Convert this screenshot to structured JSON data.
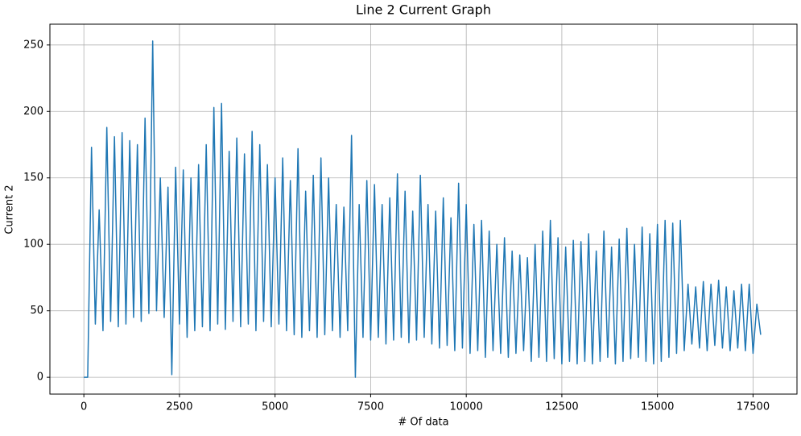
{
  "chart_data": {
    "type": "line",
    "title": "Line 2 Current Graph",
    "x_label": "# Of data",
    "y_label": "Current 2",
    "x": [
      0,
      100,
      200,
      300,
      400,
      500,
      600,
      700,
      800,
      900,
      1000,
      1100,
      1200,
      1300,
      1400,
      1500,
      1600,
      1700,
      1800,
      1900,
      2000,
      2100,
      2200,
      2300,
      2400,
      2500,
      2600,
      2700,
      2800,
      2900,
      3000,
      3100,
      3200,
      3300,
      3400,
      3500,
      3600,
      3700,
      3800,
      3900,
      4000,
      4100,
      4200,
      4300,
      4400,
      4500,
      4600,
      4700,
      4800,
      4900,
      5000,
      5100,
      5200,
      5300,
      5400,
      5500,
      5600,
      5700,
      5800,
      5900,
      6000,
      6100,
      6200,
      6300,
      6400,
      6500,
      6600,
      6700,
      6800,
      6900,
      7000,
      7100,
      7200,
      7300,
      7400,
      7500,
      7600,
      7700,
      7800,
      7900,
      8000,
      8100,
      8200,
      8300,
      8400,
      8500,
      8600,
      8700,
      8800,
      8900,
      9000,
      9100,
      9200,
      9300,
      9400,
      9500,
      9600,
      9700,
      9800,
      9900,
      10000,
      10100,
      10200,
      10300,
      10400,
      10500,
      10600,
      10700,
      10800,
      10900,
      11000,
      11100,
      11200,
      11300,
      11400,
      11500,
      11600,
      11700,
      11800,
      11900,
      12000,
      12100,
      12200,
      12300,
      12400,
      12500,
      12600,
      12700,
      12800,
      12900,
      13000,
      13100,
      13200,
      13300,
      13400,
      13500,
      13600,
      13700,
      13800,
      13900,
      14000,
      14100,
      14200,
      14300,
      14400,
      14500,
      14600,
      14700,
      14800,
      14900,
      15000,
      15100,
      15200,
      15300,
      15400,
      15500,
      15600,
      15700,
      15800,
      15900,
      16000,
      16100,
      16200,
      16300,
      16400,
      16500,
      16600,
      16700,
      16800,
      16900,
      17000,
      17100,
      17200,
      17300,
      17400,
      17500,
      17600,
      17700
    ],
    "series": [
      {
        "name": "Current 2",
        "color": "#1f77b4",
        "values": [
          0,
          0,
          173,
          40,
          126,
          35,
          188,
          42,
          181,
          38,
          184,
          40,
          178,
          45,
          175,
          42,
          195,
          48,
          253,
          50,
          150,
          45,
          143,
          2,
          158,
          40,
          156,
          30,
          150,
          35,
          160,
          38,
          175,
          35,
          203,
          40,
          206,
          36,
          170,
          42,
          180,
          38,
          168,
          40,
          185,
          35,
          175,
          42,
          160,
          38,
          150,
          40,
          165,
          35,
          148,
          32,
          172,
          30,
          140,
          35,
          152,
          30,
          165,
          32,
          150,
          35,
          130,
          30,
          128,
          35,
          182,
          0,
          130,
          30,
          148,
          28,
          145,
          30,
          130,
          25,
          135,
          28,
          153,
          30,
          140,
          26,
          125,
          28,
          152,
          30,
          130,
          25,
          125,
          22,
          135,
          24,
          120,
          20,
          146,
          22,
          130,
          18,
          115,
          20,
          118,
          15,
          110,
          20,
          100,
          18,
          105,
          15,
          95,
          18,
          92,
          20,
          90,
          12,
          100,
          15,
          110,
          12,
          118,
          14,
          105,
          10,
          98,
          12,
          103,
          10,
          102,
          12,
          108,
          10,
          95,
          12,
          110,
          15,
          98,
          10,
          104,
          12,
          112,
          14,
          100,
          15,
          113,
          12,
          108,
          10,
          115,
          12,
          118,
          15,
          116,
          18,
          118,
          20,
          70,
          25,
          68,
          22,
          72,
          20,
          70,
          24,
          73,
          22,
          68,
          20,
          65,
          22,
          70,
          20,
          70,
          18,
          55,
          32
        ]
      }
    ],
    "xlim": [
      -888,
      18649
    ],
    "ylim": [
      -12.65,
      265.65
    ],
    "xticks": [
      0,
      2500,
      5000,
      7500,
      10000,
      12500,
      15000,
      17500
    ],
    "yticks": [
      0,
      50,
      100,
      150,
      200,
      250
    ],
    "grid": true
  }
}
